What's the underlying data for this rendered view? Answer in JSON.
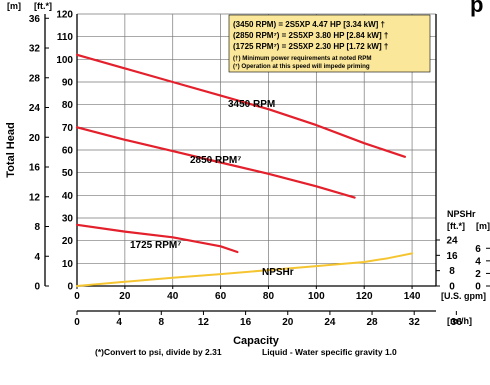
{
  "header": {
    "left_unit_m": "[m]",
    "left_unit_ft": "[ft.*]",
    "title_fragment": "p"
  },
  "legend": {
    "line1": "(3450 RPM)    = 2S5XP   4.47 HP [3.34 kW] †",
    "line2": "(2850 RPM⁷) = 2S5XP   3.80 HP [2.84 kW] †",
    "line3": "(1725 RPM⁷) = 2S5XP   2.30 HP [1.72 kW] †",
    "note1": "(†) Minimum power requirements at noted RPM",
    "note2": "(⁷) Operation at this speed will impede priming",
    "background": "#fbe79a"
  },
  "colors": {
    "pump_curve": "#e3202b",
    "npshr_curve": "#f5c531",
    "grid": "#777777"
  },
  "footer": {
    "note_psi": "(*)Convert to psi, divide by 2.31",
    "note_liquid": "Liquid - Water specific gravity 1.0"
  },
  "chart_data": {
    "type": "line",
    "title": "",
    "xlabel": "Capacity",
    "ylabel": "Total Head",
    "x_unit_primary": "[U.S. gpm]",
    "x_unit_secondary": "[m³/h]",
    "y_unit_primary": "[ft.*]",
    "y_unit_secondary": "[m]",
    "xlim": [
      0,
      150
    ],
    "ylim": [
      0,
      120
    ],
    "x_ticks": [
      "0",
      "20",
      "40",
      "60",
      "80",
      "100",
      "120",
      "140"
    ],
    "y_ticks": [
      "0",
      "10",
      "20",
      "30",
      "40",
      "50",
      "60",
      "70",
      "80",
      "90",
      "100",
      "110",
      "120"
    ],
    "x_ticks_m3h": [
      "0",
      "4",
      "8",
      "12",
      "16",
      "20",
      "24",
      "28",
      "32",
      "36"
    ],
    "y_ticks_m": [
      "0",
      "4",
      "8",
      "12",
      "16",
      "20",
      "24",
      "28",
      "32",
      "36"
    ],
    "npshr_axis": {
      "label": "NPSHr",
      "unit_ft": "[ft.*]",
      "unit_m": "[m]",
      "ticks_ft": [
        "0",
        "8",
        "16",
        "24"
      ],
      "ticks_m": [
        "0",
        "2",
        "4",
        "6"
      ],
      "ylim_ft": [
        0,
        30
      ]
    },
    "series": [
      {
        "name": "3450 RPM",
        "axis": "head",
        "x": [
          0,
          20,
          40,
          60,
          80,
          100,
          120,
          137
        ],
        "y": [
          102,
          96,
          90,
          84,
          78,
          71,
          63,
          57
        ]
      },
      {
        "name": "2850 RPM⁷",
        "axis": "head",
        "x": [
          0,
          20,
          40,
          60,
          80,
          100,
          116
        ],
        "y": [
          70,
          64.5,
          59.5,
          54.5,
          49.5,
          44,
          39
        ]
      },
      {
        "name": "1725 RPM⁷",
        "axis": "head",
        "x": [
          0,
          20,
          40,
          60,
          67
        ],
        "y": [
          27,
          24,
          21.5,
          17.5,
          15
        ]
      },
      {
        "name": "NPSHr",
        "axis": "npshr",
        "x": [
          0,
          20,
          40,
          60,
          80,
          100,
          120,
          130,
          140
        ],
        "y": [
          0,
          2.2,
          4.3,
          6.2,
          8.3,
          10.4,
          12.5,
          14.5,
          17
        ]
      }
    ]
  }
}
